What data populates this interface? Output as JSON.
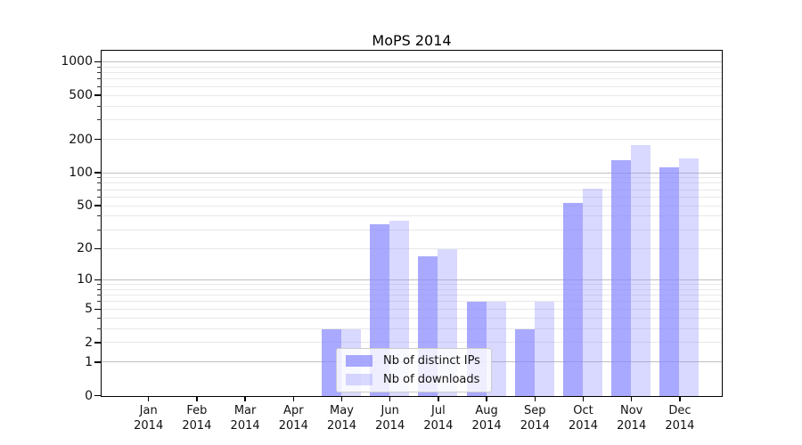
{
  "chart_data": {
    "type": "bar",
    "title": "MoPS 2014",
    "x": {
      "categories": [
        "Jan",
        "Feb",
        "Mar",
        "Apr",
        "May",
        "Jun",
        "Jul",
        "Aug",
        "Sep",
        "Oct",
        "Nov",
        "Dec"
      ],
      "year": "2014"
    },
    "series": [
      {
        "name": "Nb of distinct IPs",
        "color": "rgba(136,136,255,0.72)",
        "values": [
          0,
          0,
          0,
          0,
          3,
          34,
          17,
          6,
          3,
          54,
          132,
          113
        ]
      },
      {
        "name": "Nb of downloads",
        "color": "rgba(136,136,255,0.32)",
        "values": [
          0,
          0,
          0,
          0,
          3,
          37,
          20,
          6,
          6,
          72,
          178,
          136
        ]
      }
    ],
    "y_axis": {
      "scale": "log10(1+x)",
      "labeled_ticks": [
        0,
        1,
        2,
        5,
        10,
        20,
        50,
        100,
        200,
        500,
        1000
      ],
      "major_gridlines": [
        1,
        10,
        100,
        1000
      ],
      "minor_gridlines": [
        2,
        3,
        4,
        5,
        6,
        7,
        8,
        9,
        20,
        30,
        40,
        50,
        60,
        70,
        80,
        90,
        200,
        300,
        400,
        500,
        600,
        700,
        800,
        900
      ],
      "ylim_top_approx": 1270
    },
    "legend": {
      "position": "lower center"
    },
    "grid": true,
    "colors": {
      "bar_base": "#8888ff",
      "major_grid": "#c0c0c0",
      "minor_grid": "#e8e8e8",
      "spine": "#000000",
      "text": "#111111",
      "legend_border": "#cccccc"
    }
  }
}
